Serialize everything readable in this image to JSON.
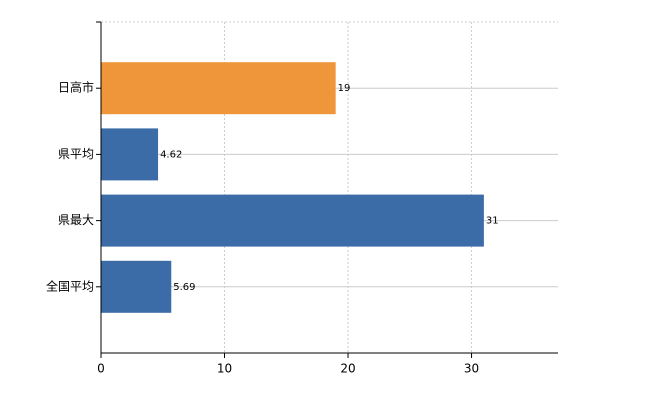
{
  "chart_data": {
    "type": "hbar",
    "categories": [
      "日高市",
      "県平均",
      "県最大",
      "全国平均"
    ],
    "values": [
      19,
      4.62,
      31,
      5.69
    ],
    "colors": [
      "#f0963a",
      "#3b6ca8",
      "#3b6ca8",
      "#3b6ca8"
    ],
    "xlim": [
      0,
      37
    ],
    "xticks": [
      0,
      10,
      20,
      30
    ],
    "grid": true
  }
}
